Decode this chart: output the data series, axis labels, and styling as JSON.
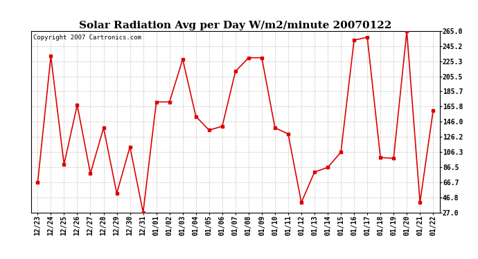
{
  "title": "Solar Radiation Avg per Day W/m2/minute 20070122",
  "copyright": "Copyright 2007 Cartronics.com",
  "dates": [
    "12/23",
    "12/24",
    "12/25",
    "12/26",
    "12/27",
    "12/28",
    "12/29",
    "12/30",
    "12/31",
    "01/01",
    "01/02",
    "01/03",
    "01/04",
    "01/05",
    "01/06",
    "01/07",
    "01/08",
    "01/09",
    "01/10",
    "01/11",
    "01/12",
    "01/13",
    "01/14",
    "01/15",
    "01/16",
    "01/17",
    "01/18",
    "01/19",
    "01/20",
    "01/21",
    "01/22"
  ],
  "values": [
    66.0,
    232.0,
    90.0,
    168.0,
    78.0,
    138.0,
    52.0,
    113.0,
    27.0,
    172.0,
    172.0,
    228.0,
    153.0,
    135.0,
    140.0,
    212.0,
    230.0,
    230.0,
    138.0,
    130.0,
    40.0,
    80.0,
    86.0,
    106.0,
    253.0,
    257.0,
    99.0,
    98.0,
    265.0,
    40.0,
    161.0
  ],
  "ylim": [
    27.0,
    265.0
  ],
  "yticks": [
    27.0,
    46.8,
    66.7,
    86.5,
    106.3,
    126.2,
    146.0,
    165.8,
    185.7,
    205.5,
    225.3,
    245.2,
    265.0
  ],
  "line_color": "#dd0000",
  "marker": "s",
  "marker_size": 2.5,
  "line_width": 1.2,
  "bg_color": "#ffffff",
  "grid_color": "#aaaaaa",
  "title_fontsize": 11,
  "tick_fontsize": 7,
  "copyright_fontsize": 6.5
}
